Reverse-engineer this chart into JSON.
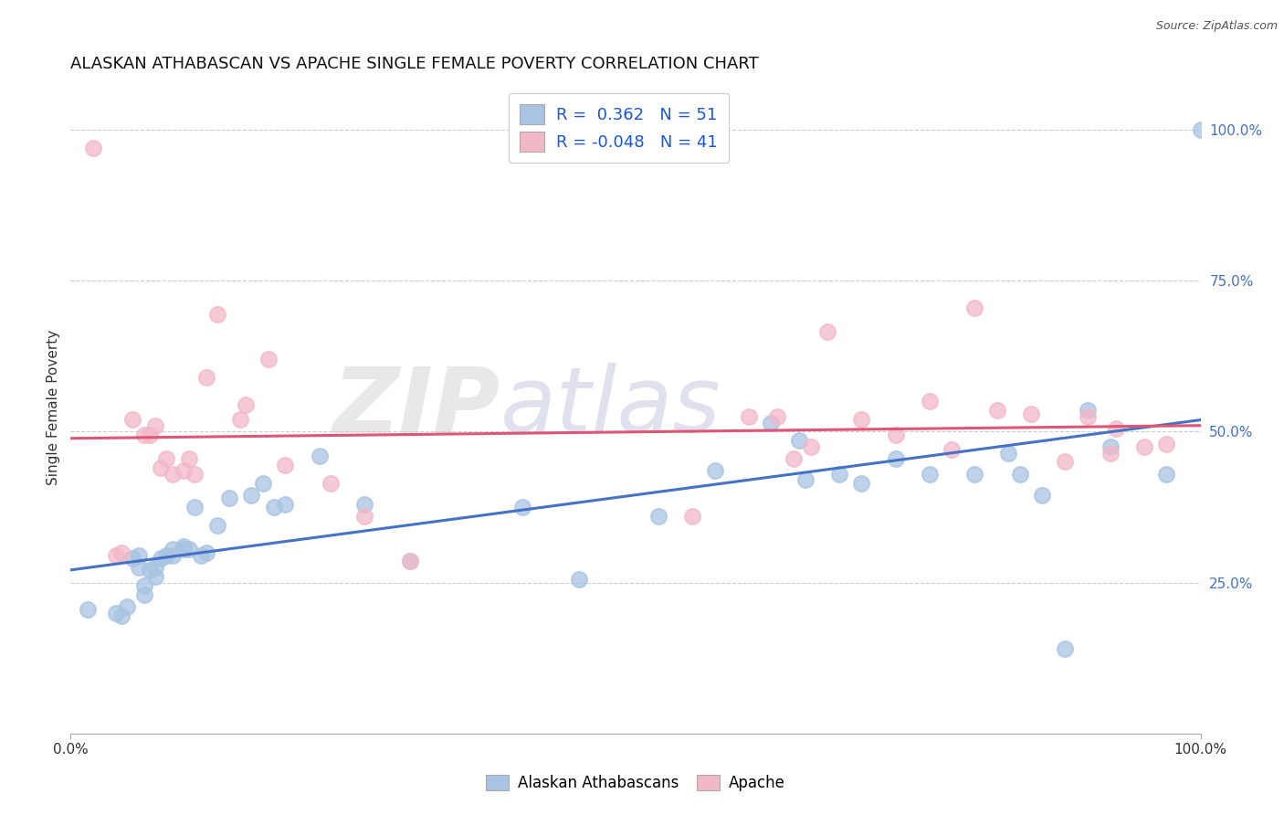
{
  "title": "ALASKAN ATHABASCAN VS APACHE SINGLE FEMALE POVERTY CORRELATION CHART",
  "source": "Source: ZipAtlas.com",
  "ylabel": "Single Female Poverty",
  "xlim": [
    0.0,
    1.0
  ],
  "ylim": [
    0.0,
    1.08
  ],
  "xtick_vals": [
    0.0,
    1.0
  ],
  "xtick_labels": [
    "0.0%",
    "100.0%"
  ],
  "ytick_vals": [
    0.25,
    0.5,
    0.75,
    1.0
  ],
  "ytick_labels": [
    "25.0%",
    "50.0%",
    "75.0%",
    "100.0%"
  ],
  "R_blue": 0.362,
  "N_blue": 51,
  "R_pink": -0.048,
  "N_pink": 41,
  "blue_scatter_color": "#a8c4e2",
  "pink_scatter_color": "#f2b8c8",
  "blue_line_color": "#4472c4",
  "pink_line_color": "#e05575",
  "legend_label_blue": "Alaskan Athabascans",
  "legend_label_pink": "Apache",
  "blue_x": [
    0.015,
    0.04,
    0.045,
    0.05,
    0.055,
    0.06,
    0.06,
    0.065,
    0.065,
    0.07,
    0.075,
    0.075,
    0.08,
    0.085,
    0.09,
    0.09,
    0.1,
    0.1,
    0.105,
    0.11,
    0.115,
    0.12,
    0.13,
    0.14,
    0.16,
    0.17,
    0.18,
    0.19,
    0.22,
    0.26,
    0.3,
    0.4,
    0.45,
    0.52,
    0.57,
    0.62,
    0.645,
    0.65,
    0.68,
    0.7,
    0.73,
    0.76,
    0.8,
    0.83,
    0.84,
    0.86,
    0.88,
    0.9,
    0.92,
    0.97,
    1.0
  ],
  "blue_y": [
    0.205,
    0.2,
    0.195,
    0.21,
    0.29,
    0.275,
    0.295,
    0.23,
    0.245,
    0.27,
    0.275,
    0.26,
    0.29,
    0.295,
    0.305,
    0.295,
    0.305,
    0.31,
    0.305,
    0.375,
    0.295,
    0.3,
    0.345,
    0.39,
    0.395,
    0.415,
    0.375,
    0.38,
    0.46,
    0.38,
    0.285,
    0.375,
    0.255,
    0.36,
    0.435,
    0.515,
    0.485,
    0.42,
    0.43,
    0.415,
    0.455,
    0.43,
    0.43,
    0.465,
    0.43,
    0.395,
    0.14,
    0.535,
    0.475,
    0.43,
    1.0
  ],
  "pink_x": [
    0.02,
    0.04,
    0.045,
    0.055,
    0.065,
    0.07,
    0.075,
    0.08,
    0.085,
    0.09,
    0.1,
    0.105,
    0.11,
    0.12,
    0.13,
    0.15,
    0.155,
    0.175,
    0.19,
    0.23,
    0.26,
    0.3,
    0.55,
    0.6,
    0.625,
    0.64,
    0.655,
    0.67,
    0.7,
    0.73,
    0.76,
    0.78,
    0.8,
    0.82,
    0.85,
    0.88,
    0.9,
    0.92,
    0.925,
    0.95,
    0.97
  ],
  "pink_y": [
    0.97,
    0.295,
    0.3,
    0.52,
    0.495,
    0.495,
    0.51,
    0.44,
    0.455,
    0.43,
    0.435,
    0.455,
    0.43,
    0.59,
    0.695,
    0.52,
    0.545,
    0.62,
    0.445,
    0.415,
    0.36,
    0.285,
    0.36,
    0.525,
    0.525,
    0.455,
    0.475,
    0.665,
    0.52,
    0.495,
    0.55,
    0.47,
    0.705,
    0.535,
    0.53,
    0.45,
    0.525,
    0.465,
    0.505,
    0.475,
    0.48
  ]
}
